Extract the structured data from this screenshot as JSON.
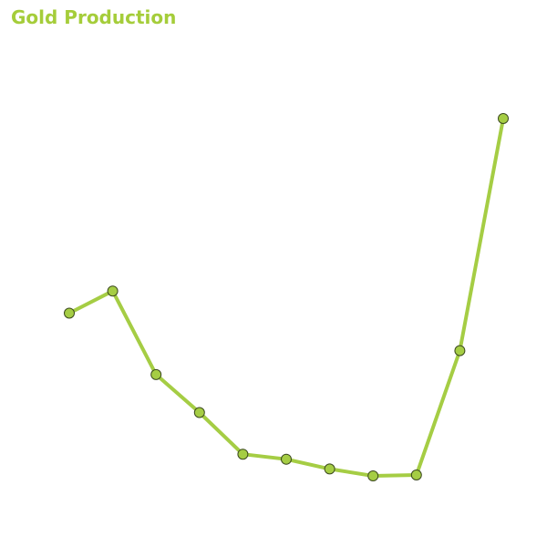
{
  "chart_data": {
    "type": "line",
    "title": "Gold Production",
    "xlabel": "",
    "ylabel": "",
    "grid": false,
    "axes_visible": false,
    "legend": "none",
    "x": [
      1,
      2,
      3,
      4,
      5,
      6,
      7,
      8,
      9,
      10,
      11
    ],
    "series": [
      {
        "values": [
          73.7,
          78.5,
          60.4,
          52.2,
          43.2,
          42.1,
          40.0,
          38.5,
          38.7,
          65.6,
          115.8
        ]
      }
    ],
    "ylim": [
      20,
      140
    ],
    "colors": {
      "title": "#a5cd3a",
      "line": "#a5cd44",
      "marker_fill": "#a5cd44",
      "marker_stroke": "#3c4a1f"
    }
  }
}
